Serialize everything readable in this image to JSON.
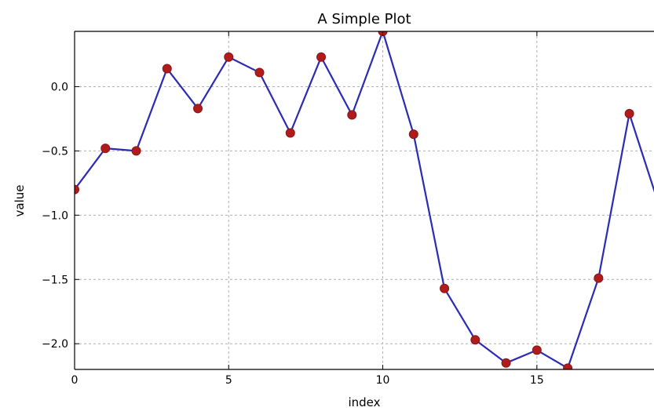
{
  "chart_data": {
    "type": "line",
    "title": "A Simple Plot",
    "xlabel": "index",
    "ylabel": "value",
    "xlim": [
      0,
      18.8
    ],
    "ylim": [
      -2.2,
      0.43
    ],
    "grid": true,
    "x_ticks": [
      0,
      5,
      10,
      15
    ],
    "x_tick_labels": [
      "0",
      "5",
      "10",
      "15"
    ],
    "y_ticks": [
      0.0,
      -0.5,
      -1.0,
      -1.5,
      -2.0
    ],
    "y_tick_labels": [
      "0.0",
      "−0.5",
      "−1.0",
      "−1.5",
      "−2.0"
    ],
    "x": [
      0,
      1,
      2,
      3,
      4,
      5,
      6,
      7,
      8,
      9,
      10,
      11,
      12,
      13,
      14,
      15,
      16,
      17,
      18
    ],
    "values": [
      -0.8,
      -0.48,
      -0.5,
      0.14,
      -0.17,
      0.23,
      0.11,
      -0.36,
      0.23,
      -0.22,
      0.43,
      -0.37,
      -1.57,
      -1.97,
      -2.15,
      -2.05,
      -2.19,
      -1.49,
      -0.21
    ],
    "trailing_value": -0.95,
    "line_color": "#2b2bb5",
    "marker_color": "#b01c1c",
    "grid_color": "#b0b0b0"
  }
}
